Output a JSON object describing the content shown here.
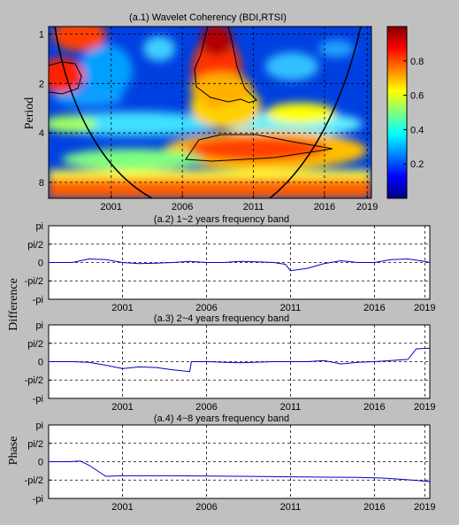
{
  "chart_data": [
    {
      "type": "heatmap",
      "title": "(a.1)  Wavelet Coherency (BDI,RTSI)",
      "ylabel": "Period",
      "xticks": [
        "2001",
        "2006",
        "2011",
        "2016",
        "2019"
      ],
      "xtick_values": [
        2001,
        2006,
        2011,
        2016,
        2019
      ],
      "xlim": [
        1996.6,
        2019.3
      ],
      "yticks": [
        "1",
        "2",
        "4",
        "8"
      ],
      "ytick_values": [
        1,
        2,
        4,
        8
      ],
      "y_scale": "log2",
      "ylim": [
        0.9,
        10
      ],
      "colorbar": {
        "ticks": [
          "0.2",
          "0.4",
          "0.6",
          "0.8"
        ],
        "tick_values": [
          0.2,
          0.4,
          0.6,
          0.8
        ],
        "range": [
          0,
          1
        ]
      },
      "grid": true
    },
    {
      "type": "line",
      "title": "(a.2)  1~2 years frequency band",
      "yticks": [
        "pi",
        "pi/2",
        "0",
        "-pi/2",
        "-pi"
      ],
      "xticks": [
        "2001",
        "2006",
        "2011",
        "2016",
        "2019"
      ],
      "xlim": [
        1996.6,
        2019.3
      ],
      "ylim": [
        -3.1416,
        3.1416
      ],
      "grid": true,
      "x": [
        1996.6,
        1998.0,
        1999.0,
        2000.0,
        2001.0,
        2002.0,
        2003.0,
        2004.0,
        2005.0,
        2006.0,
        2007.0,
        2008.0,
        2009.0,
        2010.0,
        2010.7,
        2011.0,
        2012.0,
        2013.0,
        2014.0,
        2015.0,
        2016.0,
        2017.0,
        2018.0,
        2019.0,
        2019.3
      ],
      "y": [
        0,
        0,
        0.3,
        0.25,
        0,
        -0.1,
        -0.05,
        0,
        0.1,
        0,
        0,
        0.1,
        0.05,
        0,
        -0.15,
        -0.7,
        -0.5,
        -0.1,
        0.15,
        0,
        0,
        0.25,
        0.3,
        0.1,
        0
      ]
    },
    {
      "type": "line",
      "title": "(a.3)  2~4 years frequency band",
      "yticks": [
        "pi",
        "pi/2",
        "0",
        "-pi/2",
        "-pi"
      ],
      "xticks": [
        "2001",
        "2006",
        "2011",
        "2016",
        "2019"
      ],
      "xlim": [
        1996.6,
        2019.3
      ],
      "ylim": [
        -3.1416,
        3.1416
      ],
      "grid": true,
      "x": [
        1996.6,
        1998.0,
        1999.0,
        2000.0,
        2001.0,
        2002.0,
        2003.0,
        2004.0,
        2005.0,
        2005.1,
        2006.0,
        2008.0,
        2010.0,
        2012.0,
        2013.0,
        2014.0,
        2015.0,
        2016.0,
        2017.0,
        2018.0,
        2018.5,
        2019.3
      ],
      "y": [
        0,
        0,
        -0.05,
        -0.3,
        -0.6,
        -0.45,
        -0.5,
        -0.7,
        -0.85,
        0,
        0,
        -0.1,
        0,
        0,
        0.1,
        -0.2,
        -0.05,
        0,
        0.1,
        0.2,
        1.1,
        1.15
      ]
    },
    {
      "type": "line",
      "title": "(a.4)  4~8 years frequency band",
      "yticks": [
        "pi",
        "pi/2",
        "0",
        "-pi/2",
        "-pi"
      ],
      "xticks": [
        "2001",
        "2006",
        "2011",
        "2016",
        "2019"
      ],
      "xlim": [
        1996.6,
        2019.3
      ],
      "ylim": [
        -3.1416,
        3.1416
      ],
      "grid": true,
      "x": [
        1996.6,
        1997.8,
        1998.5,
        1999.0,
        2000.0,
        2001.0,
        2004.0,
        2008.0,
        2012.0,
        2015.0,
        2016.5,
        2017.5,
        2018.5,
        2019.3
      ],
      "y": [
        0,
        0,
        0.05,
        -0.3,
        -1.25,
        -1.2,
        -1.2,
        -1.25,
        -1.3,
        -1.35,
        -1.4,
        -1.5,
        -1.6,
        -1.7
      ]
    }
  ],
  "figure": {
    "ylabel_difference": "Difference",
    "ylabel_phase": "Phase"
  },
  "colors": {
    "background": "#c0c0c0",
    "line": "#0000cc",
    "contour": "#000000",
    "colormap": [
      "#000080",
      "#0000ff",
      "#0080ff",
      "#00ffff",
      "#80ff80",
      "#ffff00",
      "#ff8000",
      "#ff0000",
      "#800000"
    ]
  }
}
